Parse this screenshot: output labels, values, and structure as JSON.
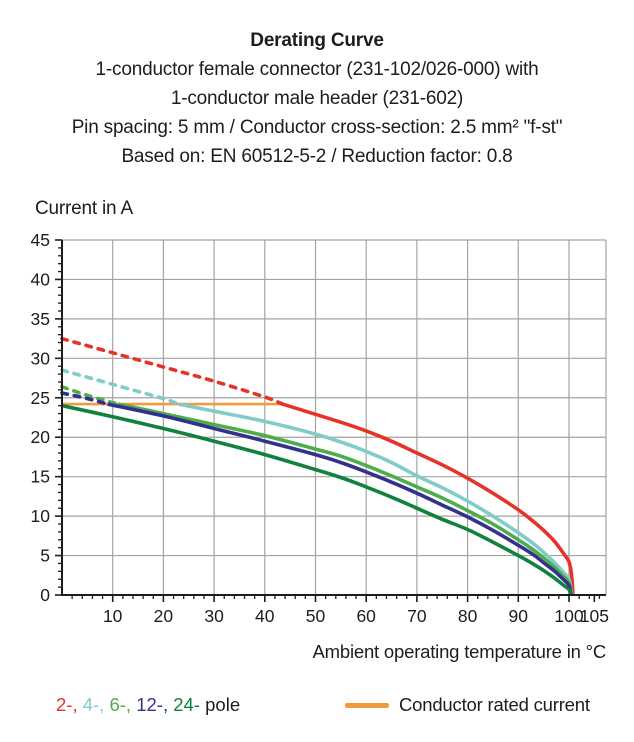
{
  "header": {
    "title": "Derating Curve",
    "subtitle_lines": [
      "1-conductor female connector (231-102/026-000) with",
      "1-conductor male header (231-602)",
      "Pin spacing: 5 mm / Conductor cross-section: 2.5 mm² \"f-st\"",
      "Based on: EN 60512-5-2 / Reduction factor: 0.8"
    ]
  },
  "chart_data": {
    "type": "line",
    "title": "Derating Curve",
    "ylabel": "Current in A",
    "xlabel": "Ambient operating temperature in °C",
    "xlim": [
      0,
      107.3
    ],
    "ylim": [
      0,
      45
    ],
    "x_ticks": [
      {
        "value": 10,
        "label": "10"
      },
      {
        "value": 20,
        "label": "20"
      },
      {
        "value": 30,
        "label": "30"
      },
      {
        "value": 40,
        "label": "40"
      },
      {
        "value": 50,
        "label": "50"
      },
      {
        "value": 60,
        "label": "60"
      },
      {
        "value": 70,
        "label": "70"
      },
      {
        "value": 80,
        "label": "80"
      },
      {
        "value": 90,
        "label": "90"
      },
      {
        "value": 100,
        "label": "100"
      },
      {
        "value": 105,
        "label": "105"
      }
    ],
    "y_ticks": [
      {
        "value": 0,
        "label": "0"
      },
      {
        "value": 5,
        "label": "5"
      },
      {
        "value": 10,
        "label": "10"
      },
      {
        "value": 15,
        "label": "15"
      },
      {
        "value": 20,
        "label": "20"
      },
      {
        "value": 25,
        "label": "25"
      },
      {
        "value": 30,
        "label": "30"
      },
      {
        "value": 35,
        "label": "35"
      },
      {
        "value": 40,
        "label": "40"
      },
      {
        "value": 45,
        "label": "45"
      }
    ],
    "x_minor_step": 2,
    "y_minor_step": 1,
    "grid": true,
    "grid_color": "#a3a3a3",
    "axis_color": "#1d1d1b",
    "rated_line": {
      "label": "Conductor rated current",
      "value": 24.2,
      "x_start": 0,
      "x_end": 43.5,
      "color": "#f29a3d"
    },
    "series": [
      {
        "name": "2-pole",
        "color": "#e5332a",
        "dash_until": 43.5,
        "points": [
          [
            0,
            32.5
          ],
          [
            10,
            30.7
          ],
          [
            20,
            28.9
          ],
          [
            30,
            27.1
          ],
          [
            40,
            25.1
          ],
          [
            43.5,
            24.2
          ],
          [
            50,
            22.9
          ],
          [
            55,
            21.9
          ],
          [
            60,
            20.8
          ],
          [
            65,
            19.5
          ],
          [
            70,
            18.0
          ],
          [
            75,
            16.5
          ],
          [
            80,
            14.8
          ],
          [
            85,
            12.9
          ],
          [
            90,
            10.8
          ],
          [
            93,
            9.3
          ],
          [
            95,
            8.2
          ],
          [
            97,
            6.9
          ],
          [
            99,
            5.2
          ],
          [
            100,
            4.2
          ],
          [
            100.5,
            2.6
          ],
          [
            100.8,
            0
          ]
        ]
      },
      {
        "name": "4-pole",
        "color": "#7fccc8",
        "dash_until": 23,
        "points": [
          [
            0,
            28.5
          ],
          [
            10,
            26.7
          ],
          [
            20,
            24.9
          ],
          [
            23,
            24.2
          ],
          [
            30,
            23.3
          ],
          [
            40,
            22.0
          ],
          [
            50,
            20.4
          ],
          [
            55,
            19.4
          ],
          [
            60,
            18.2
          ],
          [
            65,
            16.8
          ],
          [
            70,
            15.1
          ],
          [
            75,
            13.6
          ],
          [
            80,
            11.9
          ],
          [
            85,
            10.0
          ],
          [
            90,
            7.9
          ],
          [
            93,
            6.5
          ],
          [
            95,
            5.4
          ],
          [
            97,
            4.2
          ],
          [
            99,
            2.8
          ],
          [
            100,
            2.0
          ],
          [
            100.3,
            1.1
          ],
          [
            100.6,
            0
          ]
        ]
      },
      {
        "name": "6-pole",
        "color": "#4dad4a",
        "dash_until": 11,
        "points": [
          [
            0,
            26.4
          ],
          [
            5,
            25.3
          ],
          [
            11,
            24.2
          ],
          [
            20,
            23.0
          ],
          [
            30,
            21.6
          ],
          [
            40,
            20.2
          ],
          [
            50,
            18.5
          ],
          [
            55,
            17.6
          ],
          [
            60,
            16.4
          ],
          [
            65,
            15.1
          ],
          [
            70,
            13.7
          ],
          [
            75,
            12.3
          ],
          [
            80,
            10.7
          ],
          [
            85,
            9.0
          ],
          [
            90,
            7.0
          ],
          [
            93,
            5.7
          ],
          [
            95,
            4.7
          ],
          [
            97,
            3.6
          ],
          [
            99,
            2.3
          ],
          [
            100,
            1.6
          ],
          [
            100.5,
            0
          ]
        ]
      },
      {
        "name": "12-pole",
        "color": "#34318e",
        "dash_until": 9,
        "points": [
          [
            0,
            25.6
          ],
          [
            5,
            24.9
          ],
          [
            9,
            24.2
          ],
          [
            20,
            22.7
          ],
          [
            30,
            21.1
          ],
          [
            40,
            19.5
          ],
          [
            50,
            17.8
          ],
          [
            55,
            16.8
          ],
          [
            60,
            15.6
          ],
          [
            65,
            14.3
          ],
          [
            70,
            12.9
          ],
          [
            75,
            11.4
          ],
          [
            80,
            9.9
          ],
          [
            85,
            8.2
          ],
          [
            90,
            6.3
          ],
          [
            93,
            5.1
          ],
          [
            95,
            4.1
          ],
          [
            97,
            3.1
          ],
          [
            99,
            1.9
          ],
          [
            100,
            1.2
          ],
          [
            100.4,
            0
          ]
        ]
      },
      {
        "name": "24-pole",
        "color": "#12813f",
        "dash_until": null,
        "points": [
          [
            0,
            24.0
          ],
          [
            10,
            22.6
          ],
          [
            20,
            21.1
          ],
          [
            30,
            19.5
          ],
          [
            40,
            17.8
          ],
          [
            50,
            15.9
          ],
          [
            55,
            14.9
          ],
          [
            60,
            13.7
          ],
          [
            65,
            12.4
          ],
          [
            70,
            11.0
          ],
          [
            75,
            9.6
          ],
          [
            80,
            8.3
          ],
          [
            85,
            6.7
          ],
          [
            90,
            5.0
          ],
          [
            93,
            3.9
          ],
          [
            95,
            3.1
          ],
          [
            97,
            2.2
          ],
          [
            99,
            1.2
          ],
          [
            100,
            0.7
          ],
          [
            100.3,
            0
          ]
        ]
      }
    ]
  },
  "legend": {
    "pole_items": [
      {
        "label": "2-",
        "color": "#e5332a"
      },
      {
        "label": "4-",
        "color": "#7fccc8"
      },
      {
        "label": "6-",
        "color": "#4dad4a"
      },
      {
        "label": "12-",
        "color": "#34318e"
      },
      {
        "label": "24-",
        "color": "#12813f"
      }
    ],
    "pole_suffix": "pole",
    "rated_label": "Conductor rated current",
    "rated_color": "#f29a3d"
  }
}
